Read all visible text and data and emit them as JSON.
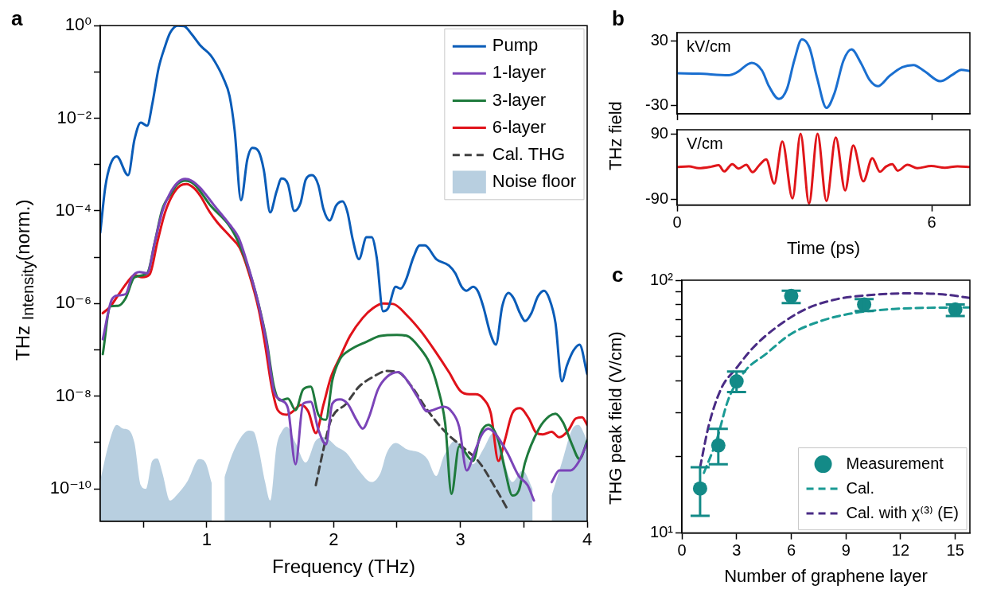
{
  "chart_data": [
    {
      "type": "line",
      "title": "a",
      "xlabel": "Frequency (THz)",
      "ylabel": "THz $_{Intensity}$(norm.)",
      "log": "y",
      "xlim": [
        0.16,
        4.0
      ],
      "ylim": [
        2e-11,
        1
      ],
      "xticks": [
        {
          "value": 0.5,
          "label": null
        },
        1,
        {
          "value": 1.5,
          "label": null
        },
        2,
        {
          "value": 2.5,
          "label": null
        },
        3,
        {
          "value": 3.5,
          "label": null
        },
        4
      ],
      "yticks": [
        {
          "value": 1e-10,
          "label": "10⁻¹⁰"
        },
        {
          "value": 1e-09,
          "label": null
        },
        {
          "value": 1e-08,
          "label": "10⁻⁸"
        },
        {
          "value": 1e-07,
          "label": null
        },
        {
          "value": 1e-06,
          "label": "10⁻⁶"
        },
        {
          "value": 1e-05,
          "label": null
        },
        {
          "value": 0.0001,
          "label": "10⁻⁴"
        },
        {
          "value": 0.001,
          "label": null
        },
        {
          "value": 0.01,
          "label": "10⁻²"
        },
        {
          "value": 0.1,
          "label": null
        },
        {
          "value": 1,
          "label": "10⁰"
        }
      ],
      "legend": "top right",
      "series": [
        {
          "name": "Pump",
          "color": "#0a5cb8",
          "x": [
            0.16,
            0.2,
            0.24,
            0.29,
            0.38,
            0.43,
            0.48,
            0.53,
            0.57,
            0.62,
            0.67,
            0.71,
            0.77,
            0.82,
            0.88,
            0.95,
            1.03,
            1.08,
            1.13,
            1.18,
            1.22,
            1.27,
            1.32,
            1.36,
            1.41,
            1.45,
            1.5,
            1.55,
            1.59,
            1.64,
            1.69,
            1.74,
            1.78,
            1.83,
            1.88,
            1.92,
            1.97,
            2.02,
            2.07,
            2.11,
            2.15,
            2.2,
            2.26,
            2.3,
            2.34,
            2.39,
            2.43,
            2.49,
            2.53,
            2.57,
            2.63,
            2.68,
            2.72,
            2.81,
            2.91,
            2.96,
            3.01,
            3.05,
            3.1,
            3.14,
            3.18,
            3.24,
            3.28,
            3.33,
            3.38,
            3.42,
            3.47,
            3.51,
            3.56,
            3.61,
            3.66,
            3.7,
            3.75,
            3.8,
            3.84,
            3.89,
            3.94,
            4.0
          ],
          "values": [
            3.4e-05,
            0.00033,
            0.001,
            0.0015,
            0.00059,
            0.0035,
            0.0081,
            0.0069,
            0.02,
            0.12,
            0.35,
            0.69,
            1.0,
            0.98,
            0.66,
            0.37,
            0.23,
            0.14,
            0.074,
            0.03,
            0.0054,
            0.00017,
            0.0013,
            0.0023,
            0.0019,
            0.00076,
            9.3e-05,
            0.00026,
            0.0005,
            0.00038,
            0.0001,
            0.00015,
            0.00047,
            0.00059,
            0.00036,
            0.00011,
            6.2e-05,
            0.00013,
            0.00016,
            9.3e-05,
            2.5e-05,
            9.1e-06,
            2.7e-05,
            2.7e-05,
            1e-05,
            6.8e-07,
            7.9e-07,
            2.3e-06,
            2.1e-06,
            3.2e-06,
            1e-05,
            1.8e-05,
            1.8e-05,
            9.1e-06,
            6.6e-06,
            4.5e-06,
            2.3e-06,
            1.9e-06,
            2.3e-06,
            1.8e-06,
            8.7e-07,
            2.1e-07,
            1.3e-07,
            8.7e-07,
            1.7e-06,
            1.3e-06,
            6.2e-07,
            4.2e-07,
            6.2e-07,
            1.4e-06,
            1.9e-06,
            1.3e-06,
            3.8e-07,
            2.1e-08,
            4.6e-08,
            9.5e-08,
            1.3e-07,
            3e-08
          ]
        },
        {
          "name": "1-layer",
          "color": "#7b44b8",
          "x": [
            0.18,
            0.25,
            0.3,
            0.36,
            0.41,
            0.47,
            0.53,
            0.59,
            0.65,
            0.71,
            0.77,
            0.83,
            0.88,
            0.95,
            1.06,
            1.18,
            1.25,
            1.3,
            1.41,
            1.47,
            1.53,
            1.59,
            1.64,
            1.7,
            1.76,
            1.82,
            1.88,
            1.94,
            1.99,
            2.05,
            2.11,
            2.18,
            2.23,
            2.28,
            2.35,
            2.42,
            2.51,
            2.58,
            2.66,
            2.74,
            2.87,
            2.93,
            2.99,
            3.05,
            3.11,
            3.17,
            3.22,
            3.28,
            3.37,
            3.46,
            3.53,
            3.58,
            3.62,
            3.65,
            3.72,
            3.78,
            3.87,
            3.93,
            4.0
          ],
          "values": [
            1.7e-07,
            1.2e-06,
            1.5e-06,
            1.6e-06,
            3.7e-06,
            4.8e-06,
            4.5e-06,
            2.1e-05,
            9.8e-05,
            0.00024,
            0.00041,
            0.00049,
            0.00045,
            0.00031,
            0.00013,
            5.1e-05,
            2.7e-05,
            1.1e-05,
            9.3e-07,
            1.5e-07,
            1.3e-08,
            8.1e-09,
            5.5e-09,
            3.4e-10,
            6.9e-09,
            7.6e-09,
            1.9e-09,
            9.1e-10,
            6.9e-09,
            8.5e-09,
            6.9e-09,
            3.1e-09,
            2e-09,
            3.6e-09,
            1.4e-08,
            2.6e-08,
            3.3e-08,
            2.2e-08,
            9.8e-09,
            4.7e-09,
            5.9e-09,
            4.7e-09,
            2.2e-09,
            2.5e-10,
            6e-10,
            1.5e-09,
            2e-09,
            1.5e-09,
            6e-10,
            1.9e-10,
            1.2e-10,
            5.6e-11,
            null,
            null,
            1.4e-10,
            2.5e-10,
            2.5e-10,
            3.7e-10,
            9.8e-10
          ]
        },
        {
          "name": "3-layer",
          "color": "#1e7a3c",
          "x": [
            0.18,
            0.24,
            0.3,
            0.36,
            0.43,
            0.53,
            0.59,
            0.65,
            0.71,
            0.77,
            0.83,
            0.9,
            1.03,
            1.18,
            1.25,
            1.33,
            1.41,
            1.47,
            1.53,
            1.58,
            1.64,
            1.7,
            1.76,
            1.82,
            1.88,
            1.94,
            1.99,
            2.05,
            2.13,
            2.26,
            2.37,
            2.5,
            2.58,
            2.68,
            2.76,
            2.82,
            2.88,
            2.93,
            2.99,
            3.1,
            3.16,
            3.22,
            3.3,
            3.35,
            3.41,
            3.46,
            3.51,
            3.62,
            3.7,
            3.75,
            3.81,
            3.88,
            3.94,
            4.0
          ],
          "values": [
            8.1e-08,
            8.7e-07,
            8.9e-07,
            1.3e-06,
            3.7e-06,
            4.5e-06,
            2.1e-05,
            0.00011,
            0.00022,
            0.00038,
            0.00045,
            0.00038,
            0.00013,
            4.7e-05,
            2.1e-05,
            5.6e-06,
            9.3e-07,
            1.7e-07,
            1.6e-08,
            8.1e-09,
            8.9e-09,
            5e-09,
            1.4e-08,
            1.6e-08,
            4e-09,
            3.1e-09,
            2.2e-08,
            6.3e-08,
            1e-07,
            1.5e-07,
            2e-07,
            2.1e-07,
            2e-07,
            1.1e-07,
            5e-08,
            1.6e-08,
            2.6e-09,
            7.8e-11,
            8.3e-10,
            4e-10,
            1.6e-09,
            2.4e-09,
            1.1e-09,
            2.7e-10,
            7.2e-11,
            9.1e-11,
            3.7e-10,
            2e-09,
            3.7e-09,
            4.2e-09,
            2.7e-09,
            9.1e-10,
            4.4e-10,
            1.1e-09
          ]
        },
        {
          "name": "6-layer",
          "color": "#e0121a",
          "x": [
            0.18,
            0.24,
            0.3,
            0.37,
            0.43,
            0.49,
            0.55,
            0.61,
            0.67,
            0.73,
            0.79,
            0.84,
            0.9,
            0.95,
            1.02,
            1.08,
            1.19,
            1.26,
            1.33,
            1.41,
            1.46,
            1.51,
            1.56,
            1.63,
            1.68,
            1.74,
            1.8,
            1.86,
            1.92,
            1.98,
            2.05,
            2.13,
            2.23,
            2.31,
            2.39,
            2.47,
            2.58,
            2.69,
            2.8,
            2.91,
            3.0,
            3.07,
            3.12,
            3.18,
            3.24,
            3.3,
            3.35,
            3.41,
            3.47,
            3.54,
            3.6,
            3.65,
            3.72,
            3.78,
            3.85,
            3.91,
            3.96,
            4.0
          ],
          "values": [
            6.2e-07,
            8.7e-07,
            1.5e-06,
            2.8e-06,
            4.1e-06,
            3.7e-06,
            4.3e-06,
            2.1e-05,
            9.1e-05,
            0.00022,
            0.00035,
            0.00038,
            0.00031,
            0.00021,
            9.8e-05,
            5.8e-05,
            2.7e-05,
            1.6e-05,
            4.8e-06,
            7.4e-07,
            1.3e-07,
            1.7e-08,
            5e-09,
            4e-09,
            4.7e-09,
            6.5e-09,
            4.7e-09,
            1.6e-09,
            6.5e-09,
            2.6e-08,
            6.9e-08,
            2e-07,
            4.9e-07,
            7.9e-07,
            1e-06,
            9.8e-07,
            5.5e-07,
            2.5e-07,
            9.5e-08,
            3.3e-08,
            1.3e-08,
            1.1e-08,
            1.1e-08,
            8.9e-09,
            4.3e-09,
            4e-10,
            1.1e-09,
            4.3e-09,
            5.5e-09,
            3.3e-09,
            1.6e-09,
            1.5e-09,
            1.7e-09,
            1.3e-09,
            1.8e-09,
            3.3e-09,
            3.5e-09,
            2.4e-09
          ]
        },
        {
          "name": "Cal. THG",
          "color": "#404040",
          "line_style": "dashed",
          "x": [
            1.86,
            1.92,
            1.98,
            2.1,
            2.2,
            2.31,
            2.42,
            2.51,
            2.61,
            2.74,
            2.88,
            3.01,
            3.15,
            3.28,
            3.37
          ],
          "values": [
            1.2e-10,
            7.1e-10,
            3.1e-09,
            6.9e-09,
            1.6e-08,
            2.6e-08,
            3.5e-08,
            3.3e-08,
            1.7e-08,
            5e-09,
            1.7e-09,
            8.3e-10,
            3.7e-10,
            1e-10,
            3.7e-11
          ]
        },
        {
          "name": "Noise floor",
          "type": "area",
          "color": "#b8cfe0",
          "x": [
            0.16,
            0.23,
            0.29,
            0.34,
            0.38,
            0.43,
            0.48,
            0.52,
            0.57,
            0.61,
            0.65,
            0.71,
            0.76,
            0.85,
            0.94,
            0.99,
            1.04,
            1.07,
            1.1,
            1.14,
            1.2,
            1.27,
            1.33,
            1.37,
            1.41,
            1.46,
            1.5,
            1.55,
            1.59,
            1.63,
            1.7,
            1.78,
            1.86,
            1.93,
            2.02,
            2.1,
            2.2,
            2.3,
            2.37,
            2.42,
            2.49,
            2.58,
            2.68,
            2.74,
            2.81,
            2.87,
            2.96,
            3.03,
            3.1,
            3.18,
            3.26,
            3.32,
            3.41,
            3.49,
            3.57,
            3.62,
            3.66,
            3.72,
            3.8,
            3.88,
            3.93,
            4.0
          ],
          "values": [
            1.5e-10,
            1e-09,
            2.4e-09,
            2e-09,
            1.9e-09,
            9.8e-10,
            1.2e-10,
            1e-10,
            4e-10,
            4.5e-10,
            2.2e-10,
            5.6e-11,
            7.2e-11,
            1.5e-10,
            4.4e-10,
            3.7e-10,
            1.3e-10,
            null,
            null,
            1.8e-10,
            5.5e-10,
            1.3e-09,
            1.8e-09,
            1.7e-09,
            7.1e-10,
            1.4e-10,
            5.6e-11,
            8.3e-10,
            1.7e-09,
            2.2e-09,
            9.8e-10,
            3.7e-10,
            1.1e-09,
            1.3e-09,
            8.3e-10,
            6e-10,
            2.5e-10,
            1.4e-10,
            2.2e-10,
            6e-10,
            9.8e-10,
            7.1e-10,
            6e-10,
            4.4e-10,
            1.9e-10,
            5.1e-10,
            1.1e-09,
            6e-10,
            3.4e-10,
            7.1e-10,
            1.6e-09,
            7.1e-10,
            1.4e-10,
            2.5e-10,
            1e-10,
            null,
            null,
            7.2e-11,
            3.7e-10,
            1.9e-09,
            2.4e-09,
            1.1e-09
          ]
        }
      ]
    },
    {
      "type": "line",
      "title": "b",
      "ylabel": "THz field",
      "annotations": [
        "kV/cm"
      ],
      "xlim": [
        0,
        6.9
      ],
      "ylim": [
        -37.5,
        37.5
      ],
      "xticks": [
        0,
        6
      ],
      "yticks": [
        -30,
        30
      ],
      "tick_labels": "y",
      "series": [
        {
          "color": "#1a6fd0",
          "x": [
            0,
            0.51,
            1.22,
            1.4,
            1.76,
            2.0,
            2.17,
            2.4,
            2.59,
            2.76,
            2.94,
            3.12,
            3.3,
            3.52,
            3.71,
            3.92,
            4.11,
            4.33,
            4.54,
            4.73,
            5.01,
            5.31,
            5.57,
            5.84,
            6.2,
            6.49,
            6.7,
            6.9
          ],
          "values": [
            0,
            -0.4,
            -1.8,
            0.6,
            9.6,
            2.6,
            -12.4,
            -23.8,
            -14.4,
            11.6,
            31.2,
            23.6,
            -4.4,
            -32,
            -18.4,
            11.6,
            22,
            9.6,
            -6.4,
            -12,
            -2.4,
            5.6,
            7.6,
            1.6,
            -7.4,
            -1.4,
            3.2,
            2.0
          ]
        }
      ]
    },
    {
      "type": "line",
      "xlabel": "Time (ps)",
      "annotations": [
        "V/cm"
      ],
      "xlim": [
        0,
        6.9
      ],
      "ylim": [
        -105,
        101
      ],
      "xticks": [
        0,
        6
      ],
      "yticks": [
        -90,
        90
      ],
      "series": [
        {
          "color": "#e0161a",
          "x": [
            0,
            0.28,
            0.51,
            0.81,
            0.98,
            1.11,
            1.3,
            1.45,
            1.63,
            1.78,
            1.93,
            2.1,
            2.29,
            2.48,
            2.72,
            2.91,
            3.11,
            3.31,
            3.52,
            3.74,
            3.96,
            4.15,
            4.39,
            4.6,
            4.78,
            4.92,
            5.07,
            5.2,
            5.43,
            5.66,
            5.99,
            6.31,
            6.61,
            6.9
          ],
          "values": [
            -1,
            1,
            -4,
            0,
            4,
            -13,
            7,
            -5,
            5,
            -15,
            3,
            20,
            -46,
            69,
            -87,
            90,
            -101,
            90,
            -94,
            80,
            -65,
            58,
            -40,
            23,
            -14,
            0,
            7,
            -11,
            5,
            -4,
            2,
            -3,
            1,
            -1
          ]
        }
      ]
    },
    {
      "type": "scatter",
      "title": "c",
      "xlabel": "Number of graphene layer",
      "ylabel": "THG peak field (V/cm)",
      "log": "y",
      "xlim": [
        0,
        15.8
      ],
      "ylim": [
        10,
        100
      ],
      "xticks": [
        0,
        3,
        6,
        9,
        12,
        15
      ],
      "yticks": [
        {
          "value": 10,
          "label": "10¹"
        },
        {
          "value": 20,
          "label": null
        },
        {
          "value": 30,
          "label": null
        },
        {
          "value": 40,
          "label": null
        },
        {
          "value": 50,
          "label": null
        },
        {
          "value": 60,
          "label": null
        },
        {
          "value": 70,
          "label": null
        },
        {
          "value": 80,
          "label": null
        },
        {
          "value": 90,
          "label": null
        },
        {
          "value": 100,
          "label": "10²"
        }
      ],
      "legend": "bottom right",
      "series": [
        {
          "name": "Measurement",
          "marker": "circle",
          "color": "#138a87",
          "x": [
            1,
            2,
            3,
            6,
            10,
            15
          ],
          "values": [
            15.0,
            22.2,
            39.8,
            86.6,
            80.2,
            76.6
          ],
          "errors": [
            [
              11.7,
              18.2
            ],
            [
              18.7,
              25.8
            ],
            [
              36.1,
              43.5
            ],
            [
              81.2,
              90.8
            ],
            [
              75.5,
              84.2
            ],
            [
              72.1,
              80.2
            ]
          ]
        },
        {
          "name": "Cal.",
          "type": "line",
          "line_style": "dashed",
          "color": "#1a9a94",
          "x": [
            1.21,
            1.89,
            2.56,
            3.51,
            4.59,
            5.94,
            7.56,
            9.45,
            11.6,
            13.6,
            15.8
          ],
          "values": [
            17.3,
            23.1,
            33.9,
            44.1,
            50.9,
            61.0,
            68.7,
            74.2,
            76.9,
            77.8,
            78.0
          ]
        },
        {
          "name": "Cal. with χ⁽³⁾ (E)",
          "type": "line",
          "line_style": "dashed",
          "color": "#4a2c85",
          "x": [
            1.0,
            1.48,
            2.16,
            2.97,
            3.91,
            5.13,
            6.75,
            8.5,
            10.26,
            12.28,
            14.3,
            15.8
          ],
          "values": [
            18.2,
            26.7,
            37.3,
            44.7,
            54.1,
            64.7,
            76.6,
            84.1,
            87.3,
            88.7,
            87.9,
            85.1
          ]
        }
      ]
    }
  ]
}
